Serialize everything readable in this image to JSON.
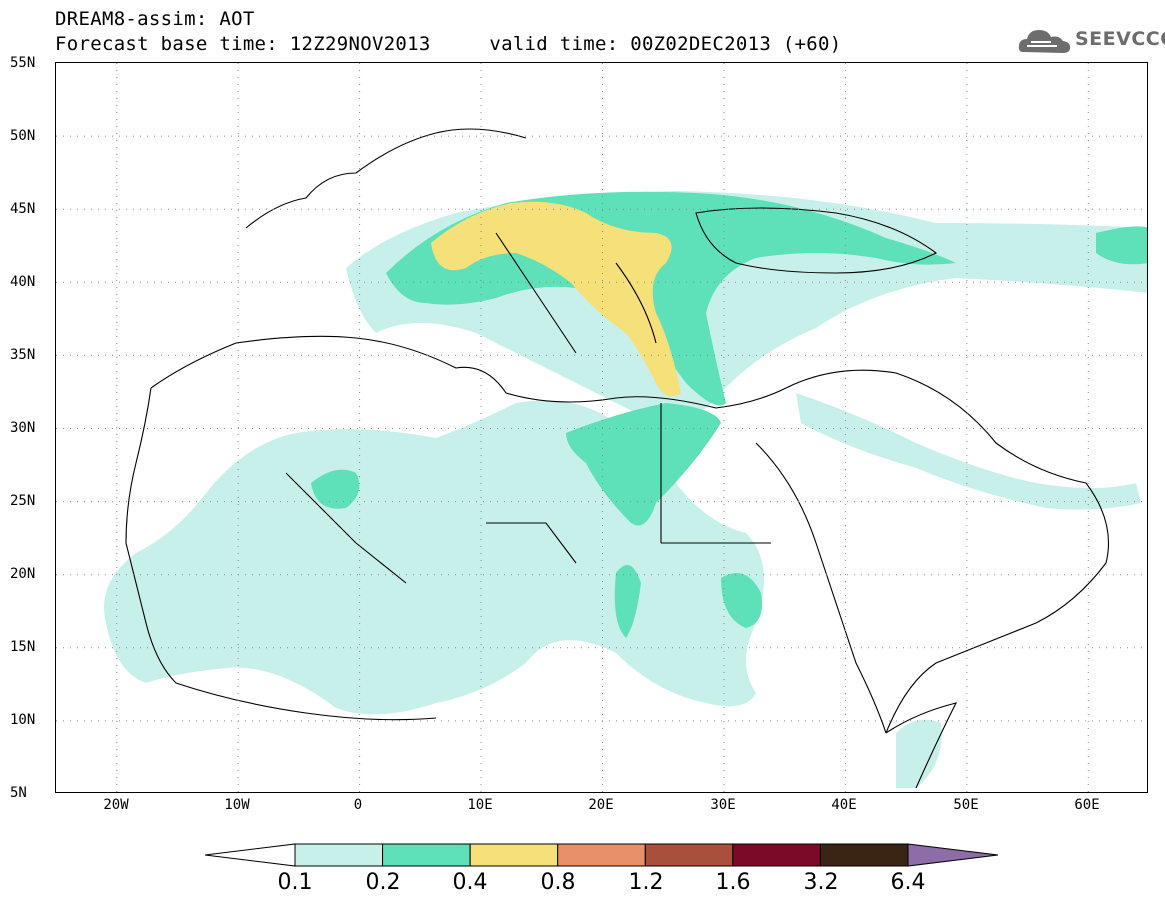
{
  "header": {
    "title_line1": "DREAM8-assim: AOT",
    "title_line2": "Forecast base time: 12Z29NOV2013     valid time: 00Z02DEC2013 (+60)"
  },
  "logo": {
    "text": "SEEVCCC",
    "icon": "cloud-icon"
  },
  "map": {
    "projection": "lat-lon",
    "lon_range": [
      -25,
      65
    ],
    "lat_range": [
      5,
      55
    ],
    "grid": "dotted",
    "lat_labels": [
      "55N",
      "50N",
      "45N",
      "40N",
      "35N",
      "30N",
      "25N",
      "20N",
      "15N",
      "10N",
      "5N"
    ],
    "lon_labels": [
      "20W",
      "10W",
      "0",
      "10E",
      "20E",
      "30E",
      "40E",
      "50E",
      "60E"
    ]
  },
  "legend": {
    "thresholds": [
      "0.1",
      "0.2",
      "0.4",
      "0.8",
      "1.2",
      "1.6",
      "3.2",
      "6.4"
    ],
    "colors": [
      "#c8f0ea",
      "#5ee0b8",
      "#f5e07a",
      "#e8906a",
      "#a8503c",
      "#7a0a28",
      "#3a2414",
      "#8e6ca8"
    ]
  }
}
